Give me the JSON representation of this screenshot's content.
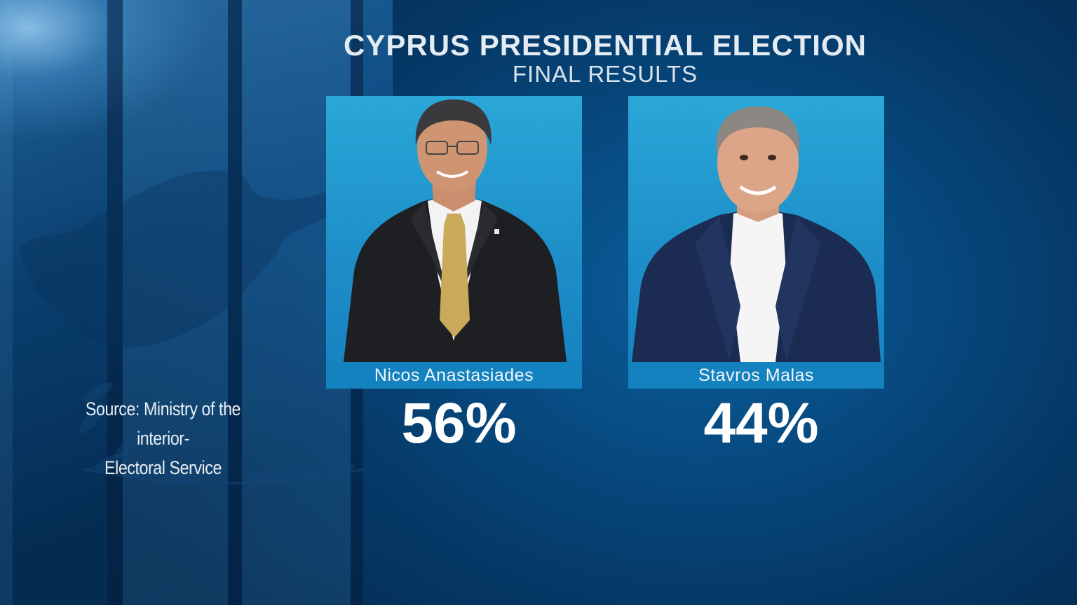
{
  "header": {
    "title": "CYPRUS PRESIDENTIAL ELECTION",
    "subtitle": "FINAL RESULTS"
  },
  "candidates": [
    {
      "name": "Nicos Anastasiades",
      "percent": "56%",
      "tie_color": "#c9a95a",
      "suit_color": "#1e1f22"
    },
    {
      "name": "Stavros Malas",
      "percent": "44%",
      "tie_color": "",
      "suit_color": "#1b2b52"
    }
  ],
  "source": {
    "line1": "Source: Ministry of the interior-",
    "line2": "Electoral Service"
  },
  "colors": {
    "background": "#053866",
    "card": "#1d8ec8",
    "text": "#ffffff"
  }
}
